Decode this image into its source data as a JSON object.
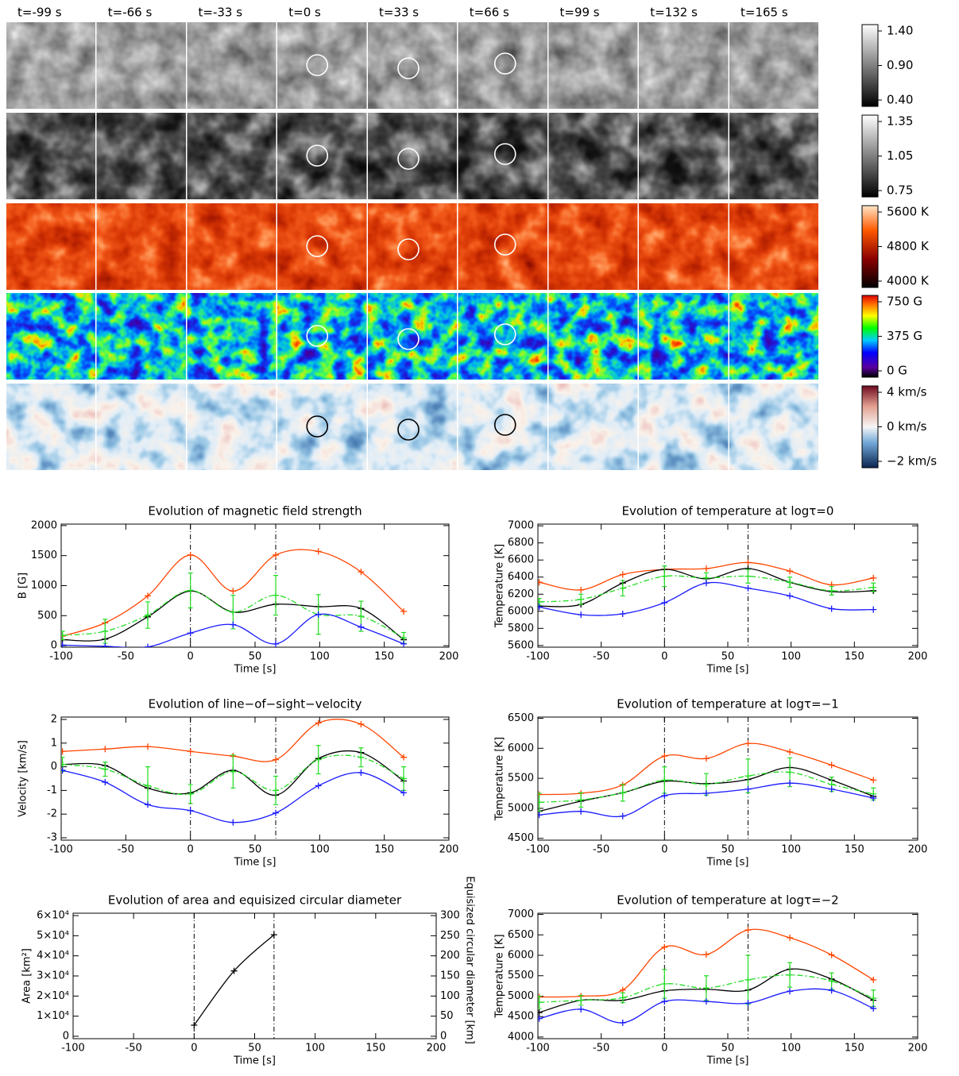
{
  "image_grid": {
    "column_labels": [
      "t=-99 s",
      "t=-66 s",
      "t=-33 s",
      "t=0 s",
      "t=33 s",
      "t=66 s",
      "t=99 s",
      "t=132 s",
      "t=165 s"
    ],
    "colorbars": [
      {
        "labels": [
          "1.40",
          "0.90",
          "0.40"
        ]
      },
      {
        "labels": [
          "1.35",
          "1.05",
          "0.75"
        ]
      },
      {
        "labels": [
          "5600 K",
          "4800 K",
          "4000 K"
        ]
      },
      {
        "labels": [
          "750 G",
          "375 G",
          "0 G"
        ]
      },
      {
        "labels": [
          "4 km/s",
          "0 km/s",
          "−2 km/s"
        ]
      }
    ]
  },
  "chart_data": [
    {
      "type": "line",
      "title": "Evolution of magnetic field strength",
      "x_label": "Time [s]",
      "y_label": "B [G]",
      "x": [
        -99,
        -66,
        -33,
        0,
        33,
        66,
        99,
        132,
        165
      ],
      "xlim": [
        -100,
        200
      ],
      "xticks": [
        -100,
        -50,
        0,
        50,
        100,
        150,
        200
      ],
      "ylim": [
        -25,
        2025
      ],
      "yticks": [
        0,
        500,
        1000,
        1500,
        2000
      ],
      "vlines": [
        0,
        66
      ],
      "series": [
        {
          "color": "#ff4500",
          "values": [
            160,
            380,
            830,
            1510,
            910,
            1510,
            1570,
            1230,
            570
          ]
        },
        {
          "color": "#000000",
          "values": [
            100,
            110,
            480,
            910,
            560,
            690,
            650,
            620,
            100
          ]
        },
        {
          "color": "#22dd22",
          "style": "dash-dot",
          "values": [
            170,
            240,
            510,
            920,
            560,
            840,
            520,
            490,
            130
          ],
          "errors": [
            70,
            200,
            220,
            290,
            280,
            330,
            330,
            250,
            90
          ]
        },
        {
          "color": "#1a1aff",
          "values": [
            10,
            -10,
            -20,
            210,
            350,
            30,
            520,
            310,
            30
          ]
        }
      ]
    },
    {
      "type": "line",
      "title": "Evolution of temperature at logτ=0",
      "x_label": "Time [s]",
      "y_label": "Temperature [K]",
      "x": [
        -99,
        -66,
        -33,
        0,
        33,
        66,
        99,
        132,
        165
      ],
      "xlim": [
        -100,
        200
      ],
      "xticks": [
        -100,
        -50,
        0,
        50,
        100,
        150,
        200
      ],
      "ylim": [
        5580,
        7020
      ],
      "yticks": [
        5600,
        5800,
        6000,
        6200,
        6400,
        6600,
        6800,
        7000
      ],
      "vlines": [
        0,
        66
      ],
      "series": [
        {
          "color": "#ff4500",
          "values": [
            6340,
            6250,
            6430,
            6490,
            6500,
            6570,
            6470,
            6310,
            6390
          ]
        },
        {
          "color": "#000000",
          "values": [
            6060,
            6080,
            6330,
            6490,
            6380,
            6500,
            6340,
            6230,
            6240
          ]
        },
        {
          "color": "#22dd22",
          "style": "dash-dot",
          "values": [
            6110,
            6140,
            6270,
            6410,
            6390,
            6410,
            6340,
            6240,
            6280
          ],
          "errors": [
            40,
            60,
            90,
            120,
            60,
            80,
            60,
            50,
            50
          ]
        },
        {
          "color": "#1a1aff",
          "values": [
            6050,
            5960,
            5970,
            6100,
            6330,
            6270,
            6180,
            6030,
            6020
          ]
        }
      ]
    },
    {
      "type": "line",
      "title": "Evolution of line−of−sight−velocity",
      "x_label": "Time [s]",
      "y_label": "Velocity [km/s]",
      "x": [
        -99,
        -66,
        -33,
        0,
        33,
        66,
        99,
        132,
        165
      ],
      "xlim": [
        -100,
        200
      ],
      "xticks": [
        -100,
        -50,
        0,
        50,
        100,
        150,
        200
      ],
      "ylim": [
        -3.1,
        2.1
      ],
      "yticks": [
        -3,
        -2,
        -1,
        0,
        1,
        2
      ],
      "vlines": [
        0,
        66
      ],
      "series": [
        {
          "color": "#ff4500",
          "values": [
            0.65,
            0.75,
            0.85,
            0.65,
            0.45,
            0.3,
            1.85,
            1.8,
            0.4
          ]
        },
        {
          "color": "#000000",
          "values": [
            0.1,
            0.05,
            -0.9,
            -1.1,
            -0.15,
            -1.2,
            0.35,
            0.6,
            -0.6
          ]
        },
        {
          "color": "#22dd22",
          "style": "dash-dot",
          "values": [
            0.1,
            -0.1,
            -0.8,
            -1.15,
            -0.2,
            -1.0,
            0.3,
            0.4,
            -0.5
          ],
          "errors": [
            0.3,
            0.3,
            0.8,
            0.4,
            0.7,
            0.6,
            0.6,
            0.4,
            0.5
          ]
        },
        {
          "color": "#1a1aff",
          "values": [
            -0.15,
            -0.65,
            -1.6,
            -1.85,
            -2.35,
            -1.95,
            -0.8,
            -0.25,
            -1.1
          ]
        }
      ]
    },
    {
      "type": "line",
      "title": "Evolution of temperature at logτ=−1",
      "x_label": "Time [s]",
      "y_label": "Temperature [K]",
      "x": [
        -99,
        -66,
        -33,
        0,
        33,
        66,
        99,
        132,
        165
      ],
      "xlim": [
        -100,
        200
      ],
      "xticks": [
        -100,
        -50,
        0,
        50,
        100,
        150,
        200
      ],
      "ylim": [
        4470,
        6520
      ],
      "yticks": [
        4500,
        5000,
        5500,
        6000,
        6500
      ],
      "vlines": [
        0,
        66
      ],
      "series": [
        {
          "color": "#ff4500",
          "values": [
            5230,
            5250,
            5390,
            5870,
            5830,
            6080,
            5940,
            5720,
            5470
          ]
        },
        {
          "color": "#000000",
          "values": [
            4950,
            5120,
            5260,
            5450,
            5410,
            5480,
            5680,
            5470,
            5200
          ]
        },
        {
          "color": "#22dd22",
          "style": "dash-dot",
          "values": [
            5100,
            5140,
            5260,
            5470,
            5400,
            5540,
            5600,
            5400,
            5240
          ],
          "errors": [
            150,
            120,
            140,
            220,
            180,
            280,
            240,
            120,
            100
          ]
        },
        {
          "color": "#1a1aff",
          "values": [
            4890,
            4950,
            4870,
            5210,
            5250,
            5320,
            5420,
            5320,
            5170
          ]
        }
      ]
    },
    {
      "type": "line",
      "title": "Evolution of area and equisized circular diameter",
      "x_label": "Time [s]",
      "y_label": "Area [km²]",
      "y2_label": "Equisized circular diameter [km]",
      "x": [
        0,
        33,
        66
      ],
      "xlim": [
        -100,
        200
      ],
      "xticks": [
        -100,
        -50,
        0,
        50,
        100,
        150,
        200
      ],
      "ylim": [
        -1200,
        61200
      ],
      "yticks": [
        0,
        {
          "value": 10000,
          "label": "1×10⁴"
        },
        {
          "value": 20000,
          "label": "2×10⁴"
        },
        {
          "value": 30000,
          "label": "3×10⁴"
        },
        {
          "value": 40000,
          "label": "4×10⁴"
        },
        {
          "value": 50000,
          "label": "5×10⁴"
        },
        {
          "value": 60000,
          "label": "6×10⁴"
        }
      ],
      "y2lim": [
        -6,
        306
      ],
      "y2ticks": [
        0,
        50,
        100,
        150,
        200,
        250,
        300
      ],
      "vlines": [
        0,
        66
      ],
      "series": [
        {
          "color": "#000000",
          "values": [
            5500,
            32500,
            50500
          ]
        }
      ]
    },
    {
      "type": "line",
      "title": "Evolution of temperature at logτ=−2",
      "x_label": "Time [s]",
      "y_label": "Temperature [K]",
      "x": [
        -99,
        -66,
        -33,
        0,
        33,
        66,
        99,
        132,
        165
      ],
      "xlim": [
        -100,
        200
      ],
      "xticks": [
        -100,
        -50,
        0,
        50,
        100,
        150,
        200
      ],
      "ylim": [
        3960,
        7030
      ],
      "yticks": [
        4000,
        4500,
        5000,
        5500,
        6000,
        6500,
        7000
      ],
      "vlines": [
        0,
        66
      ],
      "series": [
        {
          "color": "#ff4500",
          "values": [
            4980,
            5000,
            5150,
            6200,
            6020,
            6620,
            6430,
            6010,
            5400
          ]
        },
        {
          "color": "#000000",
          "values": [
            4600,
            4900,
            4900,
            5130,
            5170,
            5150,
            5660,
            5420,
            4900
          ]
        },
        {
          "color": "#22dd22",
          "style": "dash-dot",
          "values": [
            4850,
            4900,
            4960,
            5300,
            5200,
            5400,
            5520,
            5370,
            4950
          ],
          "errors": [
            150,
            120,
            120,
            350,
            300,
            600,
            300,
            200,
            200
          ]
        },
        {
          "color": "#1a1aff",
          "values": [
            4450,
            4680,
            4350,
            4870,
            4870,
            4830,
            5120,
            5140,
            4700
          ]
        }
      ]
    }
  ]
}
